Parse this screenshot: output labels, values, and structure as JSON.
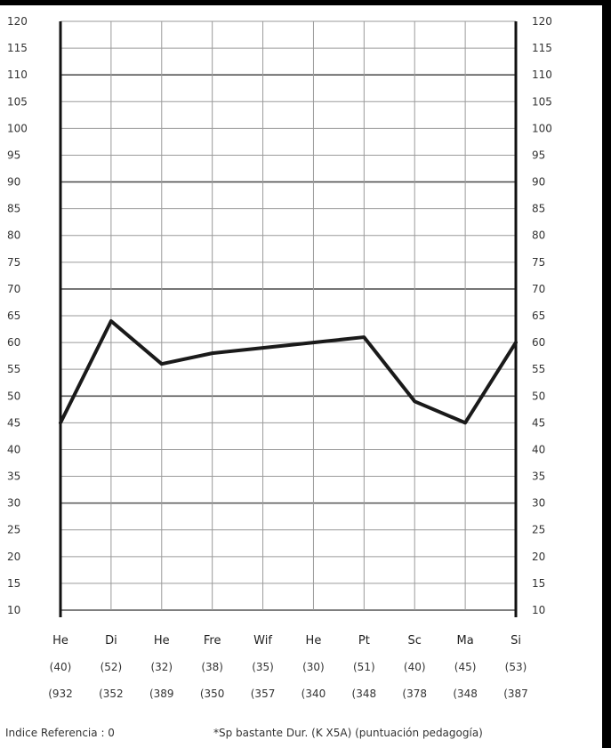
{
  "chart_data": {
    "type": "line",
    "categories": [
      "He",
      "Di",
      "He",
      "Fre",
      "Wif",
      "He",
      "Pt",
      "Sc",
      "Ma",
      "Si"
    ],
    "values": [
      45,
      64,
      56,
      58,
      59,
      60,
      61,
      49,
      45,
      60
    ],
    "ylim": [
      10,
      120
    ],
    "y_ticks_left": [
      "10",
      "15",
      "20",
      "25",
      "30",
      "35",
      "40",
      "45",
      "50",
      "55",
      "60",
      "65",
      "70",
      "75",
      "80",
      "85",
      "90",
      "95",
      "100",
      "105",
      "110",
      "115",
      "120"
    ],
    "y_ticks_right": [
      "10",
      "15",
      "20",
      "25",
      "30",
      "35",
      "40",
      "45",
      "50",
      "55",
      "60",
      "65",
      "70",
      "75",
      "80",
      "85",
      "90",
      "95",
      "100",
      "105",
      "110",
      "115",
      "120"
    ],
    "sub_row_1": [
      "(40)",
      "(52)",
      "(32)",
      "(38)",
      "(35)",
      "(30)",
      "(51)",
      "(40)",
      "(45)",
      "(53)"
    ],
    "sub_row_2": [
      "(932",
      "(352",
      "(389",
      "(350",
      "(357",
      "(340",
      "(348",
      "(378",
      "(348",
      "(387"
    ],
    "grid": true,
    "line_color": "#1a1a1a"
  },
  "footer": {
    "left": "Indice Referencia : 0",
    "right": "*Sp bastante Dur. (K X5A) (puntuación pedagogía)"
  }
}
